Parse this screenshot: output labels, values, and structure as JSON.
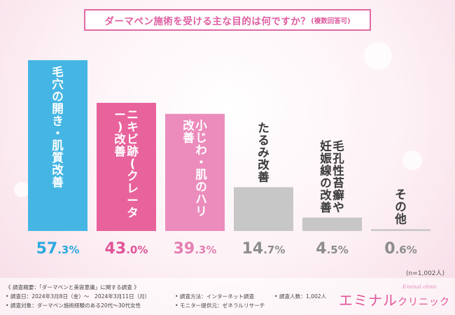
{
  "title": {
    "main": "ダーマペン施術を受ける主な目的は何ですか？",
    "sub": "(複数回答可)"
  },
  "chart_data": {
    "type": "bar",
    "categories": [
      "毛穴の開き・肌質改善",
      "ニキビ跡(クレーター)改善",
      "小じわ・肌のハリ改善",
      "たるみ改善",
      "毛孔性苔癬や妊娠線の改善",
      "その他"
    ],
    "values": [
      57.3,
      43.0,
      39.3,
      14.7,
      4.5,
      0.6
    ],
    "value_labels": [
      "57.3%",
      "43.0%",
      "39.3%",
      "14.7%",
      "4.5%",
      "0.6%"
    ],
    "ylim": [
      0,
      60
    ],
    "grid": false,
    "legend": "none"
  },
  "colors": {
    "bar_colors": [
      "#45b6e3",
      "#e8629c",
      "#ec8cbc",
      "#c7c7c7",
      "#c7c7c7",
      "#c7c7c7"
    ],
    "value_colors": [
      "#2ca8df",
      "#e0559a",
      "#e47fb3",
      "#8c8c8c",
      "#8c8c8c",
      "#8c8c8c"
    ],
    "label_colors": [
      "#ffffff",
      "#ffffff",
      "#ffffff",
      "#3a3a3a",
      "#3a3a3a",
      "#3a3a3a"
    ],
    "accent": "#e06aa6"
  },
  "sample_note": "(n=1,002人)",
  "footer": {
    "heading": "《 調査概要：「ダーマペンと美容意識」に関する調査 》",
    "date": "• 調査日：2024年3月8日（金）～　2024年3月11日（月）",
    "method": "• 調査方法：インターネット調査",
    "count": "• 調査人数：1,002人",
    "target": "• 調査対象：ダーマペン施術経験のある20代～30代女性",
    "provider": "• モニター提供元：ゼネラルリサーチ"
  },
  "logo": {
    "main": "エミナル",
    "small": "クリニック",
    "script": "Eminal clinic"
  }
}
